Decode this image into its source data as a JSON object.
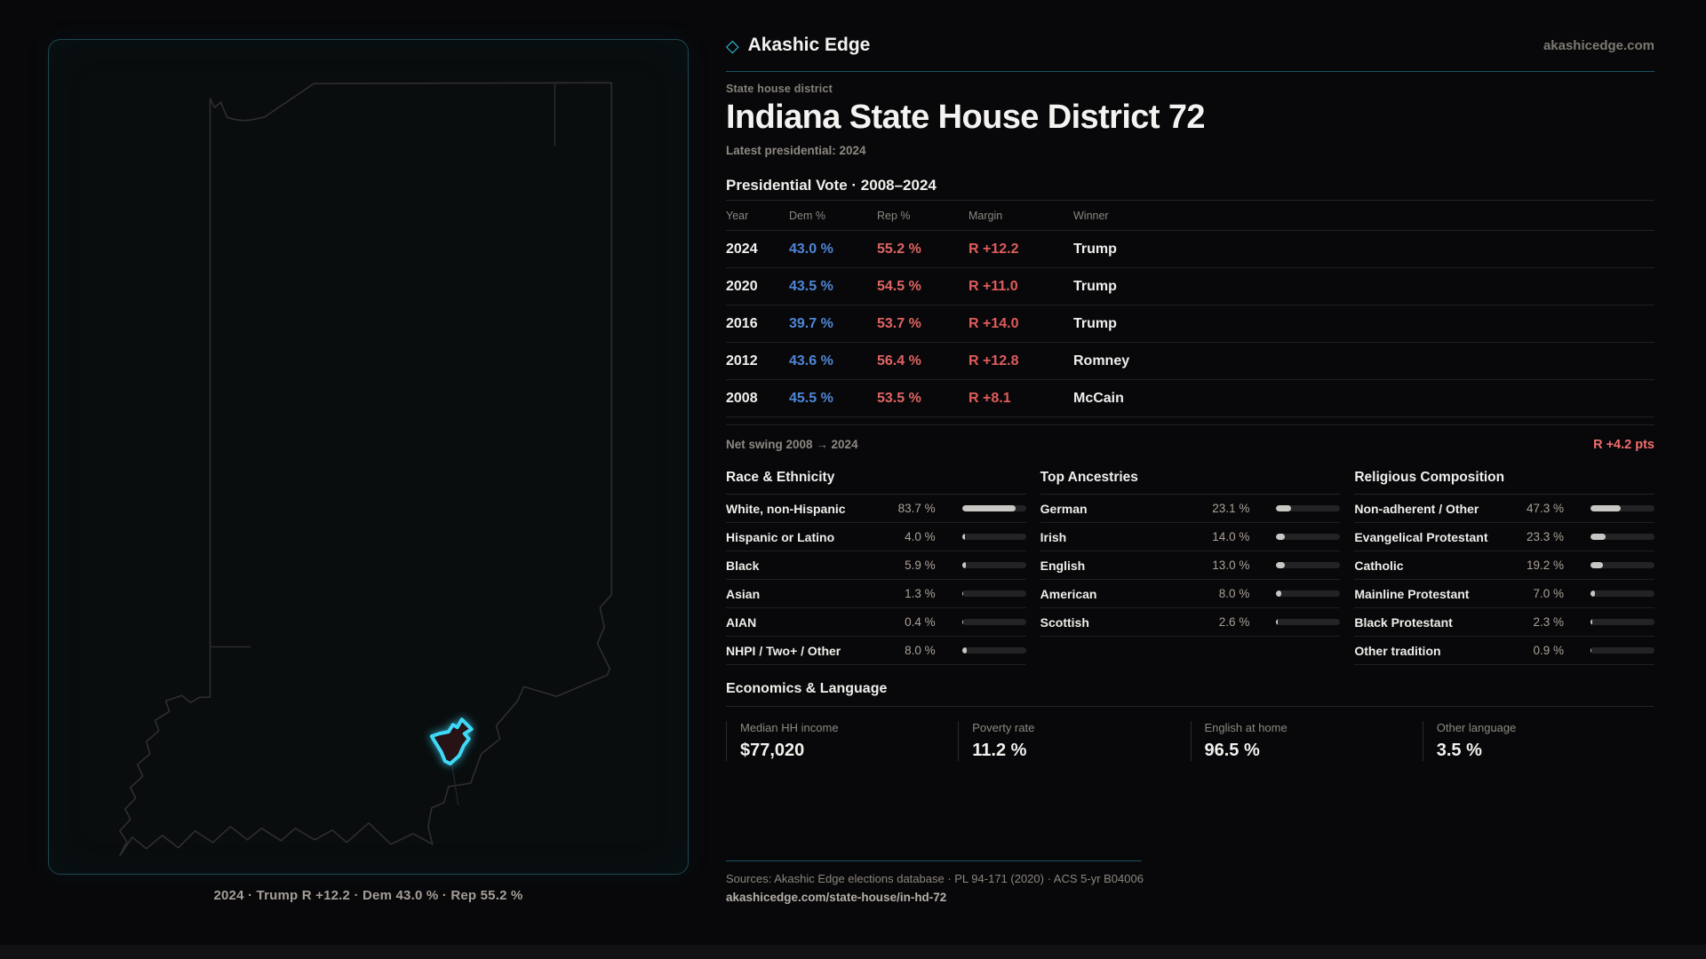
{
  "brand": {
    "diamond_icon": "◇",
    "name": "Akashic Edge",
    "domain": "akashicedge.com"
  },
  "header": {
    "eyebrow": "State house district",
    "title": "Indiana State House District 72",
    "subtitle": "Latest presidential: 2024"
  },
  "vote_table": {
    "title": "Presidential Vote · 2008–2024",
    "columns": [
      "Year",
      "Dem %",
      "Rep %",
      "Margin",
      "Winner"
    ],
    "rows": [
      {
        "year": "2024",
        "dem": "43.0 %",
        "rep": "55.2 %",
        "margin": "R +12.2",
        "winner": "Trump"
      },
      {
        "year": "2020",
        "dem": "43.5 %",
        "rep": "54.5 %",
        "margin": "R +11.0",
        "winner": "Trump"
      },
      {
        "year": "2016",
        "dem": "39.7 %",
        "rep": "53.7 %",
        "margin": "R +14.0",
        "winner": "Trump"
      },
      {
        "year": "2012",
        "dem": "43.6 %",
        "rep": "56.4 %",
        "margin": "R +12.8",
        "winner": "Romney"
      },
      {
        "year": "2008",
        "dem": "45.5 %",
        "rep": "53.5 %",
        "margin": "R +8.1",
        "winner": "McCain"
      }
    ]
  },
  "net_swing": {
    "label": "Net swing 2008 → 2024",
    "value": "R +4.2 pts"
  },
  "demographics": [
    {
      "title": "Race & Ethnicity",
      "rows": [
        {
          "label": "White, non-Hispanic",
          "value": "83.7 %",
          "pct": 83.7
        },
        {
          "label": "Hispanic or Latino",
          "value": "4.0 %",
          "pct": 4.0
        },
        {
          "label": "Black",
          "value": "5.9 %",
          "pct": 5.9
        },
        {
          "label": "Asian",
          "value": "1.3 %",
          "pct": 1.3
        },
        {
          "label": "AIAN",
          "value": "0.4 %",
          "pct": 0.4
        },
        {
          "label": "NHPI / Two+ / Other",
          "value": "8.0 %",
          "pct": 8.0
        }
      ]
    },
    {
      "title": "Top Ancestries",
      "rows": [
        {
          "label": "German",
          "value": "23.1 %",
          "pct": 23.1
        },
        {
          "label": "Irish",
          "value": "14.0 %",
          "pct": 14.0
        },
        {
          "label": "English",
          "value": "13.0 %",
          "pct": 13.0
        },
        {
          "label": "American",
          "value": "8.0 %",
          "pct": 8.0
        },
        {
          "label": "Scottish",
          "value": "2.6 %",
          "pct": 2.6
        }
      ]
    },
    {
      "title": "Religious Composition",
      "rows": [
        {
          "label": "Non-adherent / Other",
          "value": "47.3 %",
          "pct": 47.3
        },
        {
          "label": "Evangelical Protestant",
          "value": "23.3 %",
          "pct": 23.3
        },
        {
          "label": "Catholic",
          "value": "19.2 %",
          "pct": 19.2
        },
        {
          "label": "Mainline Protestant",
          "value": "7.0 %",
          "pct": 7.0
        },
        {
          "label": "Black Protestant",
          "value": "2.3 %",
          "pct": 2.3
        },
        {
          "label": "Other tradition",
          "value": "0.9 %",
          "pct": 0.9
        }
      ]
    }
  ],
  "economics": {
    "title": "Economics & Language",
    "stats": [
      {
        "label": "Median HH income",
        "value": "$77,020"
      },
      {
        "label": "Poverty rate",
        "value": "11.2 %"
      },
      {
        "label": "English at home",
        "value": "96.5 %"
      },
      {
        "label": "Other language",
        "value": "3.5 %"
      }
    ]
  },
  "map": {
    "caption": "2024 · Trump R +12.2 · Dem 43.0 % · Rep 55.2 %"
  },
  "footer": {
    "sources": "Sources: Akashic Edge elections database · PL 94-171 (2020) · ACS 5-yr B04006",
    "url": "akashicedge.com/state-house/in-hd-72"
  },
  "colors": {
    "accent_teal": "#17525e",
    "accent_cyan": "#3fd9f8",
    "dem_blue": "#4f86d6",
    "rep_red": "#e06463",
    "swing_red": "#f26d6d",
    "panel_border": "#1c4852"
  }
}
